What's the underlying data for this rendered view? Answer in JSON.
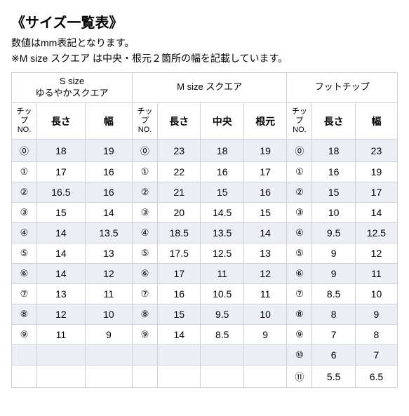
{
  "title": "《サイズ一覧表》",
  "subtitle": "数値はmm表記となります。",
  "note": "※M size スクエア は中央・根元２箇所の幅を記載しています。",
  "groups": {
    "s": {
      "line1": "S size",
      "line2": "ゆるやかスクエア"
    },
    "m": {
      "line1": "M size スクエア"
    },
    "f": {
      "line1": "フットチップ"
    }
  },
  "headers": {
    "chip": "チップ\nNO.",
    "length": "長さ",
    "width": "幅",
    "center": "中央",
    "root": "根元"
  },
  "chips": [
    "⓪",
    "①",
    "②",
    "③",
    "④",
    "⑤",
    "⑥",
    "⑦",
    "⑧",
    "⑨",
    "⑩",
    "⑪"
  ],
  "rows": [
    {
      "s": [
        18,
        19
      ],
      "m": [
        23,
        18,
        19
      ],
      "f": [
        18,
        23
      ]
    },
    {
      "s": [
        17,
        16
      ],
      "m": [
        22,
        16,
        17
      ],
      "f": [
        16,
        19
      ]
    },
    {
      "s": [
        16.5,
        16
      ],
      "m": [
        21,
        15,
        16
      ],
      "f": [
        15,
        17
      ]
    },
    {
      "s": [
        15,
        14
      ],
      "m": [
        20,
        14.5,
        15
      ],
      "f": [
        10,
        14
      ]
    },
    {
      "s": [
        14,
        13.5
      ],
      "m": [
        18.5,
        13.5,
        14
      ],
      "f": [
        9.5,
        12.5
      ]
    },
    {
      "s": [
        14,
        13
      ],
      "m": [
        17.5,
        12.5,
        13
      ],
      "f": [
        9,
        12
      ]
    },
    {
      "s": [
        14,
        12
      ],
      "m": [
        17,
        11,
        12
      ],
      "f": [
        9,
        11
      ]
    },
    {
      "s": [
        13,
        11
      ],
      "m": [
        16,
        10.5,
        11
      ],
      "f": [
        8.5,
        10
      ]
    },
    {
      "s": [
        12,
        10
      ],
      "m": [
        15,
        9.5,
        10
      ],
      "f": [
        8,
        9
      ]
    },
    {
      "s": [
        11,
        9
      ],
      "m": [
        14,
        8.5,
        9
      ],
      "f": [
        7,
        8
      ]
    },
    {
      "s": null,
      "m": null,
      "f": [
        6,
        7
      ]
    },
    {
      "s": null,
      "m": null,
      "f": [
        5.5,
        6.5
      ]
    }
  ],
  "colors": {
    "even_row": "#eceef5",
    "odd_row": "#ffffff",
    "border": "#d0d0d8",
    "text": "#000000"
  }
}
